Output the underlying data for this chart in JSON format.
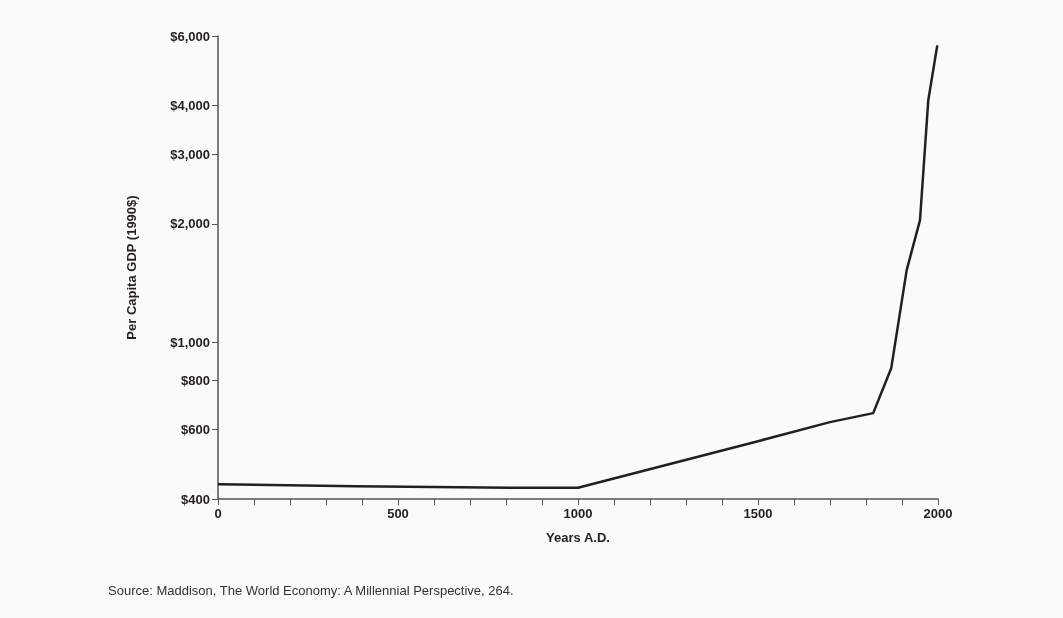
{
  "chart_data": {
    "type": "line",
    "xlabel": "Years A.D.",
    "ylabel": "Per Capita GDP (1990$)",
    "annotations": [
      "Source: Maddison, The World Economy: A Millennial Perspective, 264."
    ],
    "x": [
      0,
      380,
      840,
      1000,
      1500,
      1700,
      1820,
      1870,
      1913,
      1950,
      1973,
      1998
    ],
    "series": [
      {
        "color": "#231f20",
        "values": [
          436,
          431,
          427,
          427,
          561,
          627,
          661,
          859,
          1526,
          2043,
          4120,
          5680
        ]
      }
    ],
    "log": "y",
    "grid": false,
    "marker": "none",
    "line_style": "solid",
    "xlim": [
      0,
      2000
    ],
    "xticks": [
      0,
      {
        "value": 100,
        "label": null
      },
      {
        "value": 200,
        "label": null
      },
      {
        "value": 300,
        "label": null
      },
      {
        "value": 400,
        "label": null
      },
      500,
      {
        "value": 600,
        "label": null
      },
      {
        "value": 700,
        "label": null
      },
      {
        "value": 800,
        "label": null
      },
      {
        "value": 900,
        "label": null
      },
      1000,
      {
        "value": 1100,
        "label": null
      },
      {
        "value": 1200,
        "label": null
      },
      {
        "value": 1300,
        "label": null
      },
      {
        "value": 1400,
        "label": null
      },
      1500,
      {
        "value": 1600,
        "label": null
      },
      {
        "value": 1700,
        "label": null
      },
      {
        "value": 1800,
        "label": null
      },
      {
        "value": 1900,
        "label": null
      },
      2000
    ],
    "ylim": [
      400,
      6000
    ],
    "yticks": [
      {
        "value": 400,
        "label": "$400"
      },
      {
        "value": 600,
        "label": "$600"
      },
      {
        "value": 800,
        "label": "$800"
      },
      {
        "value": 1000,
        "label": "$1,000"
      },
      {
        "value": 2000,
        "label": "$2,000"
      },
      {
        "value": 3000,
        "label": "$3,000"
      },
      {
        "value": 4000,
        "label": "$4,000"
      },
      {
        "value": 6000,
        "label": "$6,000"
      }
    ]
  }
}
